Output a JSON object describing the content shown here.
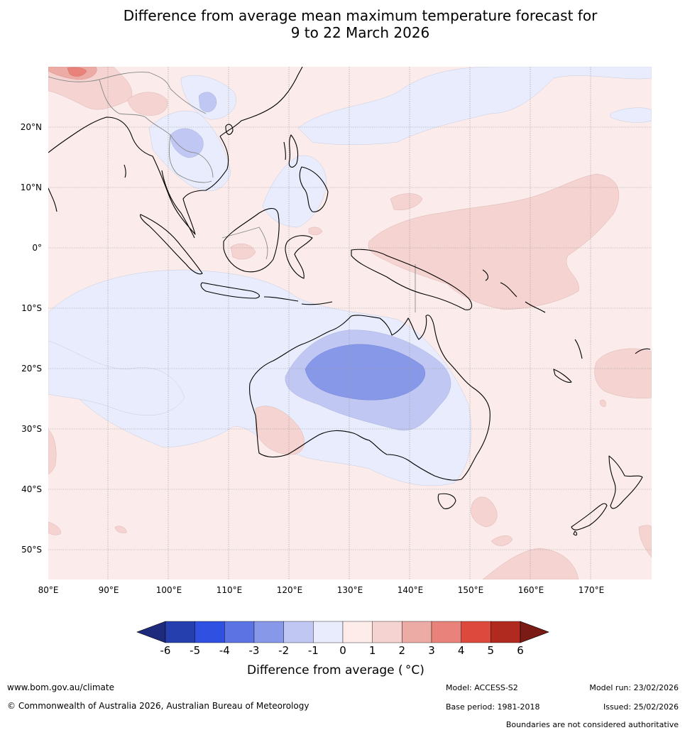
{
  "title": {
    "line1": "Difference from average mean maximum temperature forecast for",
    "line2": "9 to 22 March 2026"
  },
  "map": {
    "lat_labels": [
      "20°N",
      "10°N",
      "0°",
      "10°S",
      "20°S",
      "30°S",
      "40°S",
      "50°S"
    ],
    "lon_labels": [
      "80°E",
      "90°E",
      "100°E",
      "110°E",
      "120°E",
      "130°E",
      "140°E",
      "150°E",
      "160°E",
      "170°E"
    ],
    "colors": {
      "ocean_background": "#fbeceb",
      "c_pos_1": "#f4d3d0",
      "c_pos_2": "#edaba6",
      "c_pos_3": "#e8827b",
      "c_neg_1": "#e8ecfc",
      "c_neg_2": "#c0c7f3",
      "c_neg_3": "#8798e8",
      "coast": "#000000",
      "border": "#888888"
    }
  },
  "colorbar": {
    "ticks": [
      "-6",
      "-5",
      "-4",
      "-3",
      "-2",
      "-1",
      "0",
      "1",
      "2",
      "3",
      "4",
      "5",
      "6"
    ],
    "colors": [
      "#1e2a7c",
      "#263fae",
      "#2f50e0",
      "#5c73e3",
      "#8798e8",
      "#c0c7f3",
      "#e8ecfc",
      "#fdecea",
      "#f4d3d0",
      "#edaba6",
      "#e8827b",
      "#dd4a3d",
      "#b02a20",
      "#7a1b16"
    ],
    "label_text": "Difference from average (",
    "label_unit": "°C)"
  },
  "footer": {
    "website": "www.bom.gov.au/climate",
    "copyright": "© Commonwealth of Australia 2026, Australian Bureau of Meteorology",
    "model": "Model: ACCESS-S2",
    "model_run": "Model run: 23/02/2026",
    "base_period": "Base period: 1981-2018",
    "issued": "Issued: 25/02/2026",
    "disclaimer": "Boundaries are not considered authoritative"
  }
}
